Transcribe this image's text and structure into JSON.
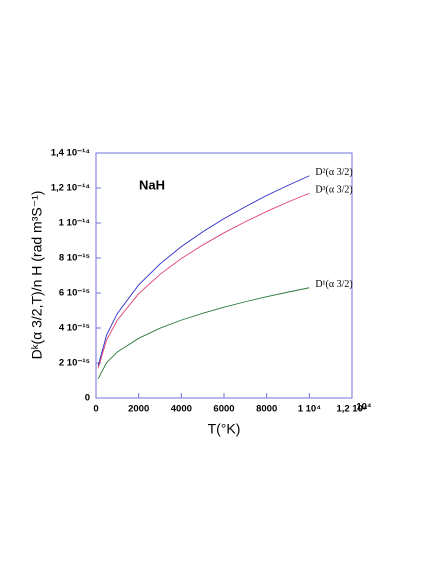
{
  "chart_data": {
    "type": "line",
    "annotation": "NaH",
    "x_label": "T(°K)",
    "y_label": "Dᵏ(α 3/2,T)/n H (rad m³S⁻¹)",
    "x_exponent_note": "10⁴",
    "x": [
      100,
      500,
      1000,
      2000,
      3000,
      4000,
      5000,
      6000,
      7000,
      8000,
      9000,
      10000
    ],
    "series": [
      {
        "name": "D²(α 3/2)",
        "color": "#2c2cc8",
        "values": [
          1.84e-15,
          3.61e-15,
          4.83e-15,
          6.46e-15,
          7.66e-15,
          8.65e-15,
          9.49e-15,
          1.025e-14,
          1.093e-14,
          1.157e-14,
          1.215e-14,
          1.27e-14
        ]
      },
      {
        "name": "D³(α 3/2)",
        "color": "#e0406e",
        "values": [
          1.7e-15,
          3.32e-15,
          4.45e-15,
          5.96e-15,
          7.06e-15,
          7.97e-15,
          8.74e-15,
          9.44e-15,
          1.007e-14,
          1.066e-14,
          1.12e-14,
          1.17e-14
        ]
      },
      {
        "name": "D¹(α 3/2)",
        "color": "#2a7a3a",
        "values": [
          1.1e-15,
          2.02e-15,
          2.63e-15,
          3.41e-15,
          3.99e-15,
          4.45e-15,
          4.84e-15,
          5.19e-15,
          5.5e-15,
          5.79e-15,
          6.05e-15,
          6.3e-15
        ]
      }
    ],
    "xlim": [
      0,
      12000
    ],
    "xticks": [
      0,
      2000,
      4000,
      6000,
      8000,
      {
        "value": 10000,
        "label": "1 10⁴"
      },
      {
        "value": 12000,
        "label": "1,2 10⁴"
      }
    ],
    "ylim": [
      0,
      1.4e-14
    ],
    "yticks": [
      0,
      {
        "value": 2e-15,
        "label": "2 10⁻¹⁵"
      },
      {
        "value": 4e-15,
        "label": "4 10⁻¹⁵"
      },
      {
        "value": 6e-15,
        "label": "6 10⁻¹⁵"
      },
      {
        "value": 8e-15,
        "label": "8 10⁻¹⁵"
      },
      {
        "value": 1e-14,
        "label": "1 10⁻¹⁴"
      },
      {
        "value": 1.2e-14,
        "label": "1,2 10⁻¹⁴"
      },
      {
        "value": 1.4e-14,
        "label": "1,4 10⁻¹⁴"
      }
    ],
    "grid": false
  }
}
